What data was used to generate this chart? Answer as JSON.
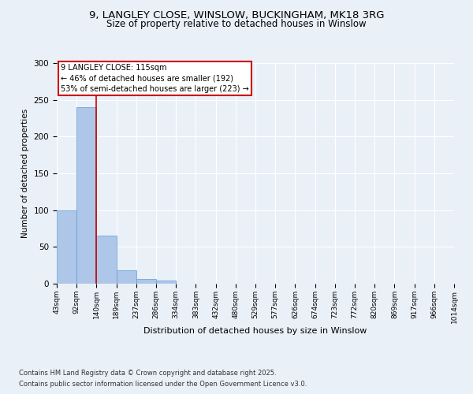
{
  "title_line1": "9, LANGLEY CLOSE, WINSLOW, BUCKINGHAM, MK18 3RG",
  "title_line2": "Size of property relative to detached houses in Winslow",
  "xlabel": "Distribution of detached houses by size in Winslow",
  "ylabel": "Number of detached properties",
  "bin_labels": [
    "43sqm",
    "92sqm",
    "140sqm",
    "189sqm",
    "237sqm",
    "286sqm",
    "334sqm",
    "383sqm",
    "432sqm",
    "480sqm",
    "529sqm",
    "577sqm",
    "626sqm",
    "674sqm",
    "723sqm",
    "772sqm",
    "820sqm",
    "869sqm",
    "917sqm",
    "966sqm",
    "1014sqm"
  ],
  "bar_values": [
    100,
    240,
    65,
    18,
    6,
    4,
    0,
    0,
    0,
    0,
    0,
    0,
    0,
    0,
    0,
    0,
    0,
    0,
    0,
    0
  ],
  "bar_color": "#aec6e8",
  "bar_edge_color": "#5a9fd4",
  "ylim": [
    0,
    300
  ],
  "yticks": [
    0,
    50,
    100,
    150,
    200,
    250,
    300
  ],
  "red_line_color": "#cc0000",
  "annotation_text": "9 LANGLEY CLOSE: 115sqm\n← 46% of detached houses are smaller (192)\n53% of semi-detached houses are larger (223) →",
  "annotation_box_color": "#ffffff",
  "annotation_edge_color": "#cc0000",
  "footer_line1": "Contains HM Land Registry data © Crown copyright and database right 2025.",
  "footer_line2": "Contains public sector information licensed under the Open Government Licence v3.0.",
  "background_color": "#eaf0f8",
  "plot_bg_color": "#eaf0f8"
}
